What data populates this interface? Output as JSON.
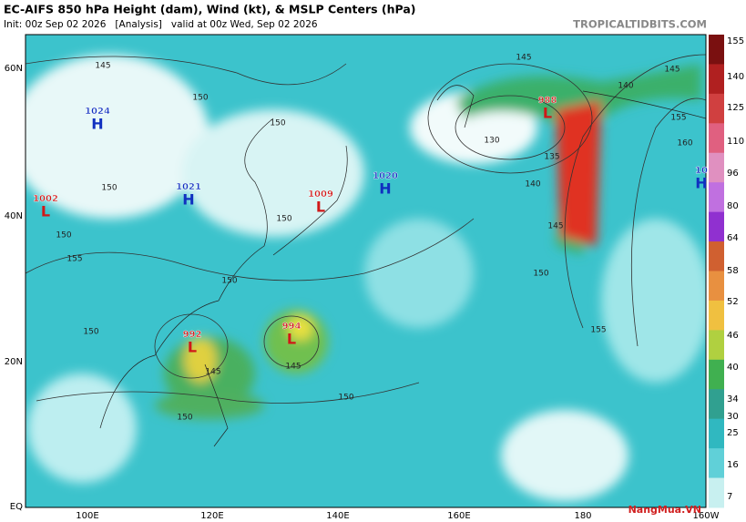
{
  "header": {
    "title": "EC-AIFS 850 hPa Height (dam), Wind (kt), & MSLP Centers (hPa)",
    "subtitle": "Init: 00z Sep 02 2026   [Analysis]   valid at 00z Wed, Sep 02 2026",
    "site": "TROPICALTIDBITS.COM"
  },
  "map": {
    "lat_labels": [
      "60N",
      "40N",
      "20N",
      "EQ"
    ],
    "lon_labels": [
      "100E",
      "120E",
      "140E",
      "160E",
      "180",
      "160W"
    ]
  },
  "colorbar": {
    "labels": [
      "155",
      "140",
      "125",
      "110",
      "96",
      "80",
      "64",
      "58",
      "52",
      "46",
      "40",
      "34",
      "30",
      "25",
      "16",
      "7"
    ]
  },
  "centers": [
    {
      "pressure": "1024",
      "kind": "H"
    },
    {
      "pressure": "1021",
      "kind": "H"
    },
    {
      "pressure": "1002",
      "kind": "L"
    },
    {
      "pressure": "1009",
      "kind": "L"
    },
    {
      "pressure": "1020",
      "kind": "H"
    },
    {
      "pressure": "988",
      "kind": "L"
    },
    {
      "pressure": "992",
      "kind": "L"
    },
    {
      "pressure": "994",
      "kind": "L"
    },
    {
      "pressure": "10",
      "kind": "H"
    }
  ],
  "contour_labels": [
    "145",
    "150",
    "150",
    "150",
    "150",
    "155",
    "150",
    "150",
    "150",
    "145",
    "150",
    "145",
    "150",
    "145",
    "130",
    "140",
    "135",
    "145",
    "150",
    "155",
    "160",
    "155",
    "145",
    "140"
  ],
  "watermark": "NangMua.VN"
}
